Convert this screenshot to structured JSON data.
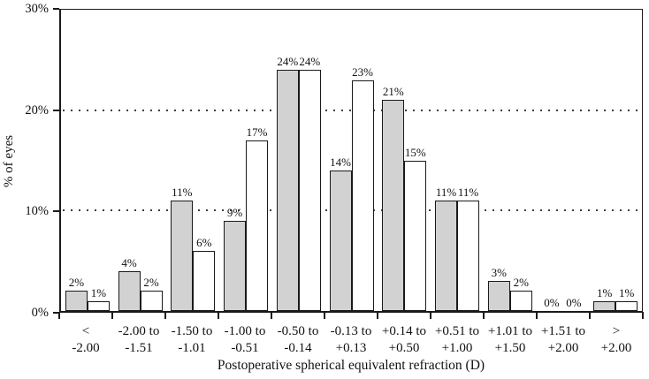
{
  "chart_data": {
    "type": "bar",
    "title": "",
    "xlabel": "Postoperative spherical equivalent refraction (D)",
    "ylabel": "% of eyes",
    "ylim": [
      0,
      30
    ],
    "yticks": [
      {
        "value": 0,
        "label": "0%"
      },
      {
        "value": 10,
        "label": "10%"
      },
      {
        "value": 20,
        "label": "20%"
      },
      {
        "value": 30,
        "label": "30%"
      }
    ],
    "gridlines": {
      "style": "dotted",
      "values": [
        10,
        20
      ],
      "color": "#3d3d3d"
    },
    "legend": "none",
    "categories": [
      [
        "<",
        "-2.00"
      ],
      [
        "-2.00 to",
        "-1.51"
      ],
      [
        "-1.50 to",
        "-1.01"
      ],
      [
        "-1.00 to",
        "-0.51"
      ],
      [
        "-0.50 to",
        "-0.14"
      ],
      [
        "-0.13 to",
        "+0.13"
      ],
      [
        "+0.14 to",
        "+0.50"
      ],
      [
        "+0.51 to",
        "+1.00"
      ],
      [
        "+1.01 to",
        "+1.50"
      ],
      [
        "+1.51 to",
        "+2.00"
      ],
      [
        ">",
        "+2.00"
      ]
    ],
    "series": [
      {
        "name": "gray-bars",
        "fill": "#d2d2d2",
        "border": "#1a1a1a",
        "values": [
          2,
          4,
          11,
          9,
          24,
          14,
          21,
          11,
          3,
          0,
          1
        ],
        "labels": [
          "2%",
          "4%",
          "11%",
          "9%",
          "24%",
          "14%",
          "21%",
          "11%",
          "3%",
          "0%",
          "1%"
        ]
      },
      {
        "name": "white-bars",
        "fill": "#ffffff",
        "border": "#1a1a1a",
        "values": [
          1,
          2,
          6,
          17,
          24,
          23,
          15,
          11,
          2,
          0,
          1
        ],
        "labels": [
          "1%",
          "2%",
          "6%",
          "17%",
          "24%",
          "23%",
          "15%",
          "11%",
          "2%",
          "0%",
          "1%"
        ]
      }
    ]
  }
}
